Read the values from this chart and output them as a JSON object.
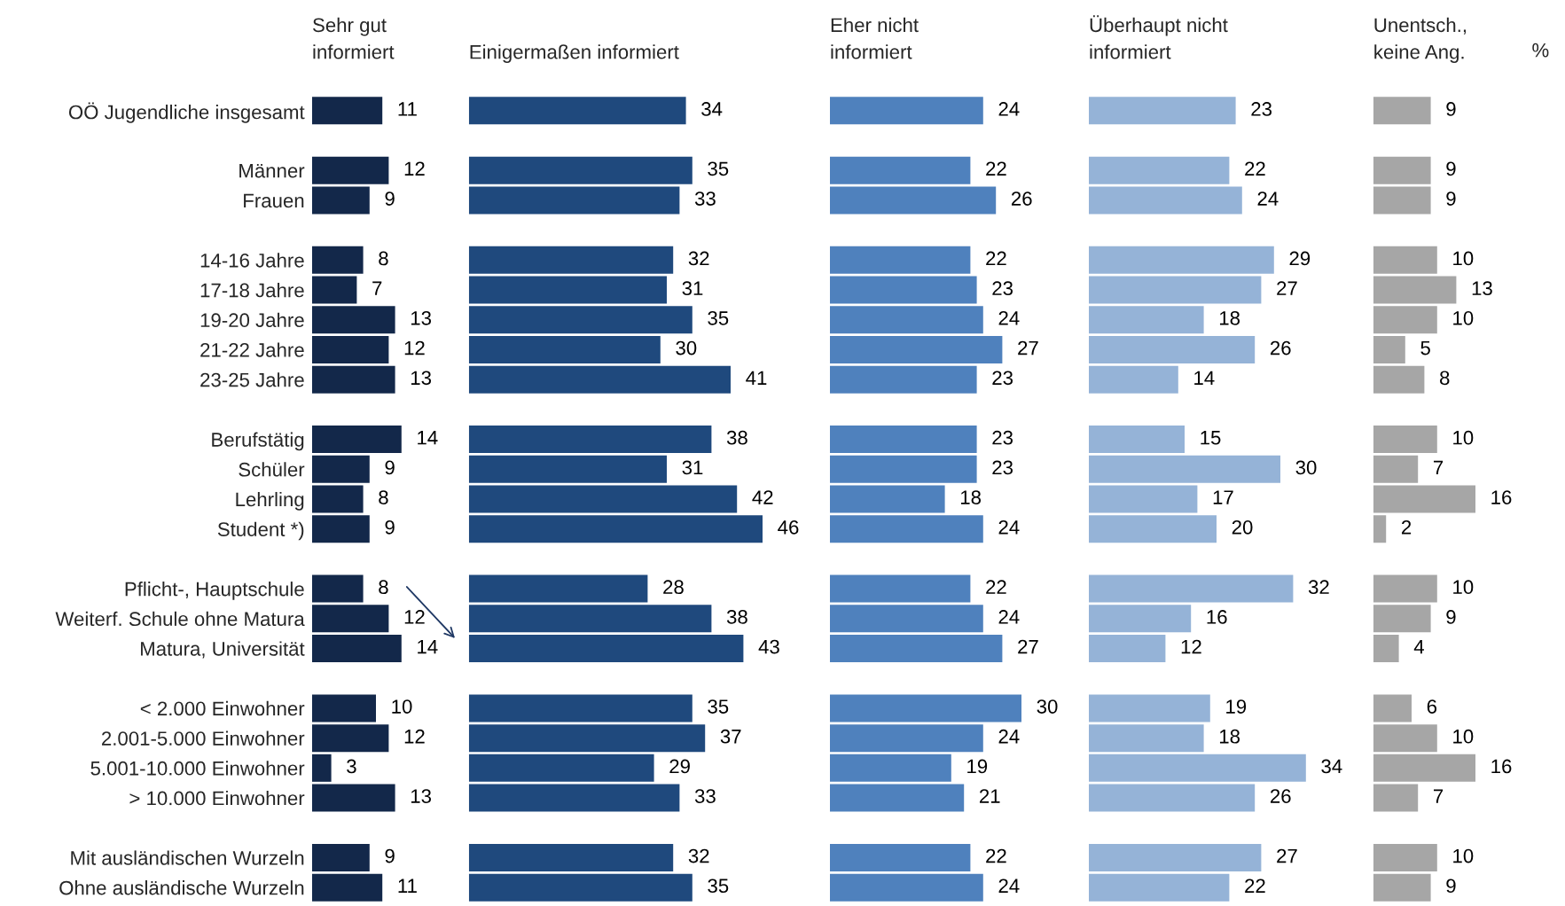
{
  "chart_data": [
    {
      "type": "bar",
      "orientation": "horizontal",
      "title": "Sehr gut\ninformiert",
      "categories": [
        "OÖ Jugendliche insgesamt",
        null,
        "Männer",
        "Frauen",
        null,
        "14-16 Jahre",
        "17-18 Jahre",
        "19-20 Jahre",
        "21-22 Jahre",
        "23-25 Jahre",
        null,
        "Berufstätig",
        "Schüler",
        "Lehrling",
        "Student *)",
        null,
        "Pflicht-, Hauptschule",
        "Weiterf. Schule ohne Matura",
        "Matura, Universität",
        null,
        "< 2.000 Einwohner",
        "2.001-5.000 Einwohner",
        "5.001-10.000 Einwohner",
        "> 10.000 Einwohner",
        null,
        "Mit ausländischen Wurzeln",
        "Ohne ausländische Wurzeln"
      ],
      "color": "#13284a",
      "values": [
        11,
        null,
        12,
        9,
        null,
        8,
        7,
        13,
        12,
        13,
        null,
        14,
        9,
        8,
        9,
        null,
        8,
        12,
        14,
        null,
        10,
        12,
        3,
        13,
        null,
        9,
        11
      ],
      "data_labels": true,
      "tick_labels": "y"
    },
    {
      "type": "bar",
      "orientation": "horizontal",
      "title": "Einigermaßen informiert",
      "color": "#1f497d",
      "values": [
        34,
        null,
        35,
        33,
        null,
        32,
        31,
        35,
        30,
        41,
        null,
        38,
        31,
        42,
        46,
        null,
        28,
        38,
        43,
        null,
        35,
        37,
        29,
        33,
        null,
        32,
        35
      ],
      "data_labels": true,
      "tick_labels": false
    },
    {
      "type": "bar",
      "orientation": "horizontal",
      "title": "Eher nicht\ninformiert",
      "color": "#4f81bd",
      "values": [
        24,
        null,
        22,
        26,
        null,
        22,
        23,
        24,
        27,
        23,
        null,
        23,
        23,
        18,
        24,
        null,
        22,
        24,
        27,
        null,
        30,
        24,
        19,
        21,
        null,
        22,
        24
      ],
      "data_labels": true,
      "tick_labels": false
    },
    {
      "type": "bar",
      "orientation": "horizontal",
      "title": "Überhaupt nicht\ninformiert",
      "color": "#95b3d7",
      "values": [
        23,
        null,
        22,
        24,
        null,
        29,
        27,
        18,
        26,
        14,
        null,
        15,
        30,
        17,
        20,
        null,
        32,
        16,
        12,
        null,
        19,
        18,
        34,
        26,
        null,
        27,
        22
      ],
      "data_labels": true,
      "tick_labels": false
    },
    {
      "type": "bar",
      "orientation": "horizontal",
      "title": "Unentsch.,\nkeine Ang.",
      "color": "#a6a6a6",
      "values": [
        9,
        null,
        9,
        9,
        null,
        10,
        13,
        10,
        5,
        8,
        null,
        10,
        7,
        16,
        2,
        null,
        10,
        9,
        4,
        null,
        6,
        10,
        16,
        7,
        null,
        10,
        9
      ],
      "data_labels": true,
      "tick_labels": false,
      "annotations": [
        "%"
      ]
    }
  ]
}
